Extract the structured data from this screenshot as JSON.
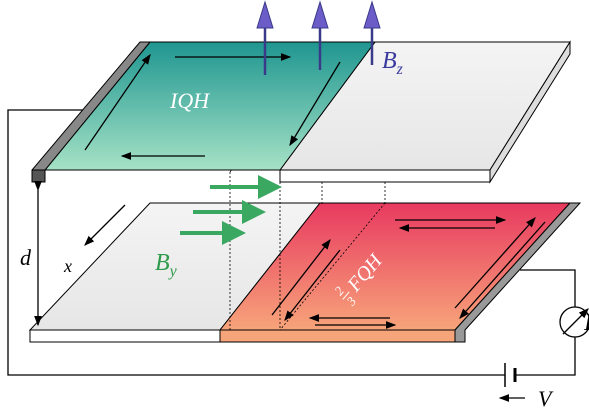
{
  "labels": {
    "iqh": "IQH",
    "bz": "B",
    "bz_sub": "z",
    "by": "B",
    "by_sub": "y",
    "d": "d",
    "x": "x",
    "fqh_num": "2",
    "fqh_den": "3",
    "fqh": "FQH",
    "current": "I",
    "voltage": "V"
  }
}
